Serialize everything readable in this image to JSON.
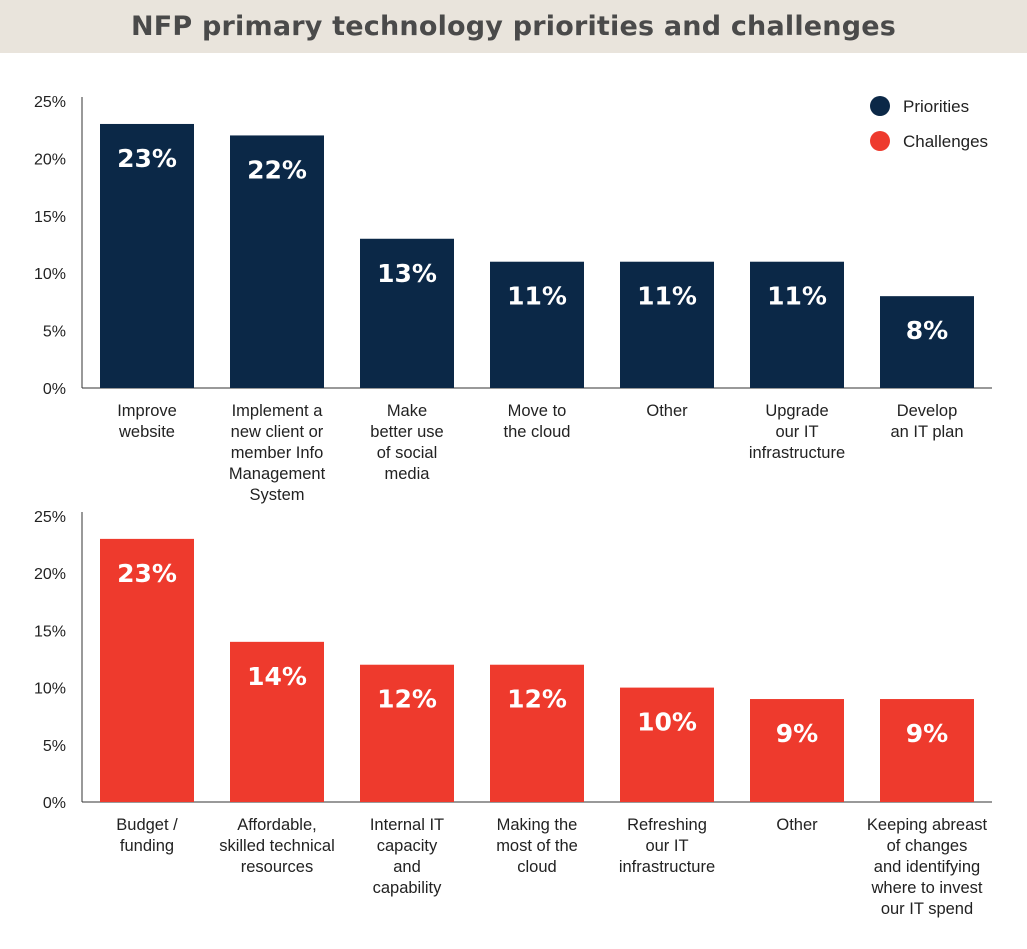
{
  "title": "NFP primary technology priorities and challenges",
  "colors": {
    "priorities": "#0b2847",
    "challenges": "#ee3a2d",
    "title_bg": "#e9e4dc",
    "axis": "#333333"
  },
  "legend": [
    {
      "name": "Priorities",
      "color": "#0b2847"
    },
    {
      "name": "Challenges",
      "color": "#ee3a2d"
    }
  ],
  "chart_data": [
    {
      "type": "bar",
      "name": "Priorities",
      "title": "",
      "xlabel": "",
      "ylabel": "",
      "ylim": [
        0,
        25
      ],
      "yticks": [
        "0%",
        "5%",
        "10%",
        "15%",
        "20%",
        "25%"
      ],
      "categories": [
        [
          "Improve",
          "website"
        ],
        [
          "Implement a",
          "new client or",
          "member Info",
          "Management",
          "System"
        ],
        [
          "Make",
          "better use",
          "of social",
          "media"
        ],
        [
          "Move to",
          "the cloud"
        ],
        [
          "Other"
        ],
        [
          "Upgrade",
          "our IT",
          "infrastructure"
        ],
        [
          "Develop",
          "an IT plan"
        ]
      ],
      "values": [
        23,
        22,
        13,
        11,
        11,
        11,
        8
      ],
      "data_labels": [
        "23%",
        "22%",
        "13%",
        "11%",
        "11%",
        "11%",
        "8%"
      ],
      "color": "#0b2847"
    },
    {
      "type": "bar",
      "name": "Challenges",
      "title": "",
      "xlabel": "",
      "ylabel": "",
      "ylim": [
        0,
        25
      ],
      "yticks": [
        "0%",
        "5%",
        "10%",
        "15%",
        "20%",
        "25%"
      ],
      "categories": [
        [
          "Budget /",
          "funding"
        ],
        [
          "Affordable,",
          "skilled technical",
          "resources"
        ],
        [
          "Internal IT",
          "capacity",
          "and",
          "capability"
        ],
        [
          "Making the",
          "most of the",
          "cloud"
        ],
        [
          "Refreshing",
          "our IT",
          "infrastructure"
        ],
        [
          "Other"
        ],
        [
          "Keeping abreast",
          "of changes",
          "and identifying",
          "where to invest",
          "our IT spend"
        ]
      ],
      "values": [
        23,
        14,
        12,
        12,
        10,
        9,
        9
      ],
      "data_labels": [
        "23%",
        "14%",
        "12%",
        "12%",
        "10%",
        "9%",
        "9%"
      ],
      "color": "#ee3a2d"
    }
  ]
}
